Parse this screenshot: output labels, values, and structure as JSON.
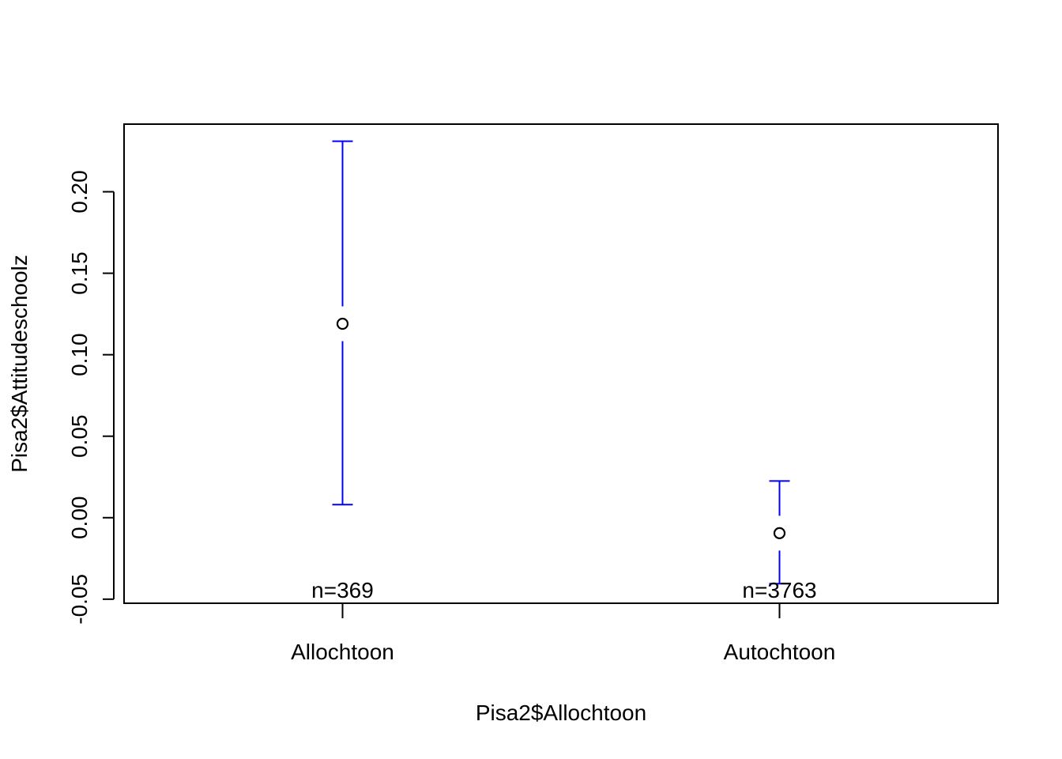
{
  "chart_data": {
    "type": "scatter",
    "xlabel": "Pisa2$Allochtoon",
    "ylabel": "Pisa2$Attitudeschoolz",
    "categories": [
      "Allochtoon",
      "Autochtoon"
    ],
    "means": [
      0.119,
      -0.0095
    ],
    "ci_upper": [
      0.231,
      0.0225
    ],
    "ci_lower": [
      0.008,
      -0.0405
    ],
    "n_labels": [
      "n=369",
      "n=3763"
    ],
    "y_ticks": [
      "-0.05",
      "0.00",
      "0.05",
      "0.10",
      "0.15",
      "0.20"
    ],
    "y_tick_values": [
      -0.05,
      0.0,
      0.05,
      0.1,
      0.15,
      0.2
    ],
    "ylim": [
      -0.0525,
      0.2415
    ],
    "xlim": [
      0.5,
      2.5
    ],
    "grid": false,
    "legend": "none",
    "error_bar_color": "#0000ff",
    "point_color": "#000000"
  }
}
